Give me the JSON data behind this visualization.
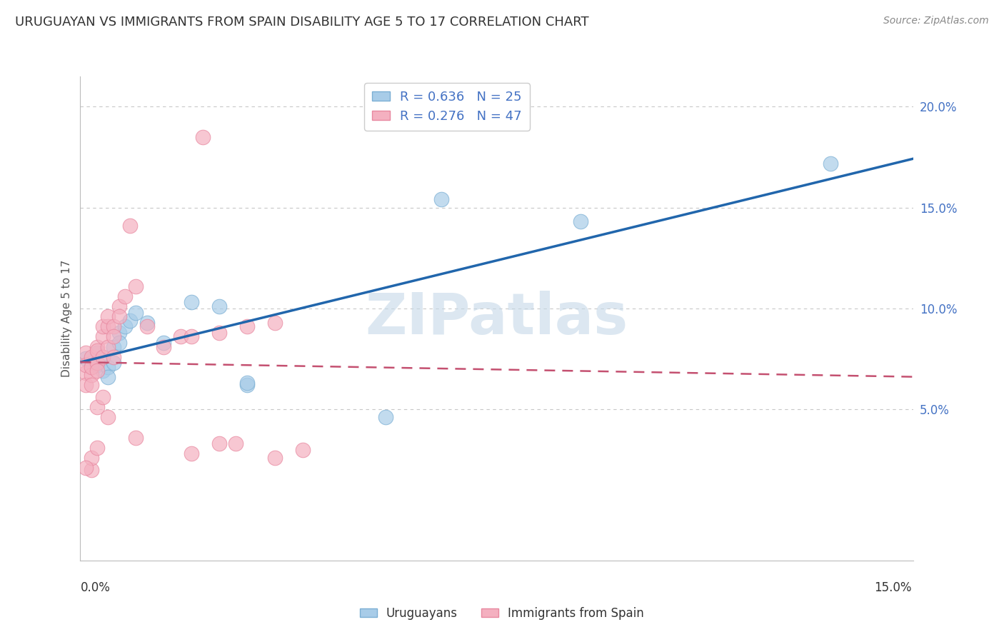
{
  "title": "URUGUAYAN VS IMMIGRANTS FROM SPAIN DISABILITY AGE 5 TO 17 CORRELATION CHART",
  "source": "Source: ZipAtlas.com",
  "xlabel_bottom_left": "0.0%",
  "xlabel_bottom_right": "15.0%",
  "ylabel": "Disability Age 5 to 17",
  "right_yticks": [
    "5.0%",
    "10.0%",
    "15.0%",
    "20.0%"
  ],
  "right_ytick_vals": [
    0.05,
    0.1,
    0.15,
    0.2
  ],
  "xmin": 0.0,
  "xmax": 0.15,
  "ymin": -0.025,
  "ymax": 0.215,
  "blue_scatter": [
    [
      0.001,
      0.075
    ],
    [
      0.002,
      0.073
    ],
    [
      0.003,
      0.078
    ],
    [
      0.003,
      0.072
    ],
    [
      0.004,
      0.076
    ],
    [
      0.004,
      0.069
    ],
    [
      0.005,
      0.071
    ],
    [
      0.005,
      0.066
    ],
    [
      0.006,
      0.073
    ],
    [
      0.006,
      0.081
    ],
    [
      0.007,
      0.088
    ],
    [
      0.007,
      0.083
    ],
    [
      0.008,
      0.091
    ],
    [
      0.009,
      0.094
    ],
    [
      0.01,
      0.098
    ],
    [
      0.012,
      0.093
    ],
    [
      0.015,
      0.083
    ],
    [
      0.02,
      0.103
    ],
    [
      0.025,
      0.101
    ],
    [
      0.03,
      0.062
    ],
    [
      0.03,
      0.063
    ],
    [
      0.055,
      0.046
    ],
    [
      0.065,
      0.154
    ],
    [
      0.09,
      0.143
    ],
    [
      0.135,
      0.172
    ]
  ],
  "pink_scatter": [
    [
      0.001,
      0.078
    ],
    [
      0.001,
      0.068
    ],
    [
      0.001,
      0.072
    ],
    [
      0.001,
      0.062
    ],
    [
      0.002,
      0.076
    ],
    [
      0.002,
      0.067
    ],
    [
      0.002,
      0.071
    ],
    [
      0.002,
      0.062
    ],
    [
      0.003,
      0.073
    ],
    [
      0.003,
      0.069
    ],
    [
      0.003,
      0.081
    ],
    [
      0.003,
      0.079
    ],
    [
      0.004,
      0.086
    ],
    [
      0.004,
      0.091
    ],
    [
      0.004,
      0.076
    ],
    [
      0.005,
      0.081
    ],
    [
      0.005,
      0.091
    ],
    [
      0.005,
      0.096
    ],
    [
      0.006,
      0.091
    ],
    [
      0.006,
      0.086
    ],
    [
      0.006,
      0.076
    ],
    [
      0.007,
      0.101
    ],
    [
      0.007,
      0.096
    ],
    [
      0.008,
      0.106
    ],
    [
      0.009,
      0.141
    ],
    [
      0.01,
      0.111
    ],
    [
      0.012,
      0.091
    ],
    [
      0.015,
      0.081
    ],
    [
      0.018,
      0.086
    ],
    [
      0.02,
      0.086
    ],
    [
      0.025,
      0.088
    ],
    [
      0.03,
      0.091
    ],
    [
      0.035,
      0.093
    ],
    [
      0.002,
      0.02
    ],
    [
      0.002,
      0.026
    ],
    [
      0.001,
      0.021
    ],
    [
      0.003,
      0.051
    ],
    [
      0.003,
      0.031
    ],
    [
      0.004,
      0.056
    ],
    [
      0.005,
      0.046
    ],
    [
      0.01,
      0.036
    ],
    [
      0.02,
      0.028
    ],
    [
      0.025,
      0.033
    ],
    [
      0.028,
      0.033
    ],
    [
      0.035,
      0.026
    ],
    [
      0.04,
      0.03
    ],
    [
      0.022,
      0.185
    ]
  ],
  "blue_line_color": "#2166ac",
  "pink_line_color": "#c45070",
  "watermark_text": "ZIPatlas",
  "watermark_color": "#c5d8e8",
  "background_color": "#ffffff",
  "grid_color": "#c8c8c8",
  "title_color": "#333333",
  "axis_label_color": "#4472c4",
  "ylabel_color": "#555555",
  "source_color": "#888888",
  "legend_text_color": "#4472c4",
  "bottom_legend_text_color": "#333333",
  "blue_scatter_face": "#a8cce8",
  "blue_scatter_edge": "#7bafd4",
  "pink_scatter_face": "#f4b0c0",
  "pink_scatter_edge": "#e888a0"
}
